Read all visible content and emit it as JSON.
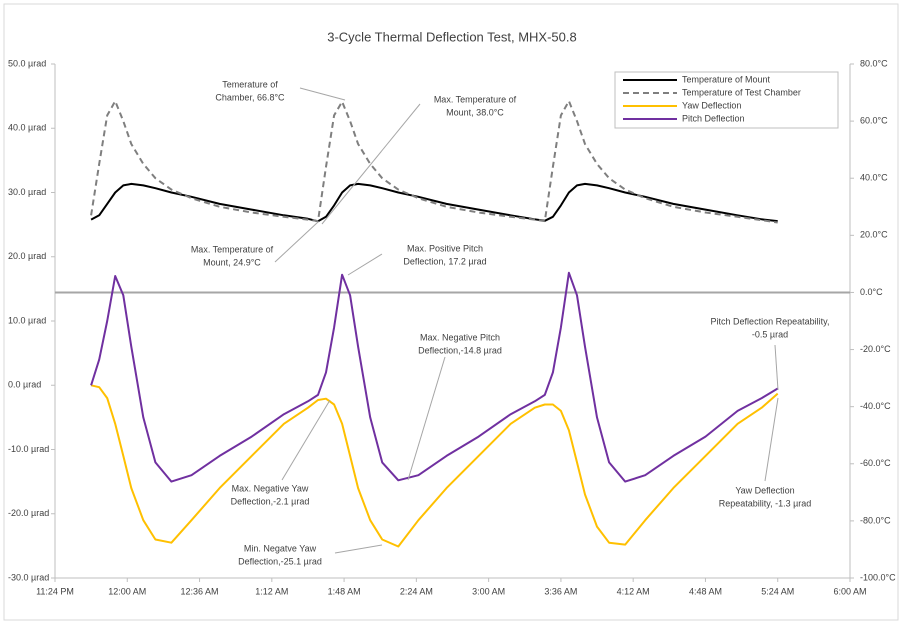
{
  "chart_data": {
    "type": "line",
    "title": "3-Cycle Thermal Deflection Test, MHX-50.8",
    "x": [
      "11:42 PM",
      "11:46 PM",
      "11:50 PM",
      "11:54 PM",
      "11:58 PM",
      "12:02 AM",
      "12:08 AM",
      "12:14 AM",
      "12:22 AM",
      "12:32 AM",
      "12:46 AM",
      "1:02 AM",
      "1:18 AM",
      "1:30 AM",
      "1:35 AM",
      "1:39 AM",
      "1:43 AM",
      "1:47 AM",
      "1:51 AM",
      "1:55 AM",
      "2:01 AM",
      "2:07 AM",
      "2:15 AM",
      "2:25 AM",
      "2:39 AM",
      "2:55 AM",
      "3:11 AM",
      "3:23 AM",
      "3:28 AM",
      "3:32 AM",
      "3:36 AM",
      "3:40 AM",
      "3:44 AM",
      "3:48 AM",
      "3:54 AM",
      "4:00 AM",
      "4:08 AM",
      "4:18 AM",
      "4:32 AM",
      "4:48 AM",
      "5:04 AM",
      "5:16 AM",
      "5:24 AM"
    ],
    "series": [
      {
        "name": "Temperature of Mount",
        "color": "#000000",
        "axis": "y2",
        "dash": false,
        "values": [
          25.5,
          27,
          31,
          35,
          37.5,
          38,
          37.5,
          36.5,
          35,
          33.5,
          31,
          29,
          27,
          25.8,
          24.9,
          26.5,
          30.5,
          35,
          37.5,
          38,
          37.5,
          36.5,
          35,
          33.5,
          31,
          29,
          27,
          25.6,
          25.1,
          26.5,
          30.5,
          35,
          37.5,
          38,
          37.5,
          36.5,
          35,
          33.5,
          31,
          29,
          27,
          25.6,
          25
        ]
      },
      {
        "name": "Temperature of Test Chamber",
        "color": "#7f7f7f",
        "axis": "y2",
        "dash": true,
        "values": [
          27,
          45,
          62,
          67,
          60,
          52,
          45,
          40,
          36,
          33,
          30,
          28,
          26.5,
          25.5,
          25,
          44,
          62,
          66.8,
          60,
          52,
          45,
          40,
          36,
          33,
          30,
          28,
          26.5,
          25.5,
          25,
          44,
          62,
          67,
          60,
          52,
          45,
          40,
          36,
          33,
          30,
          28,
          26.5,
          25.3,
          24.5
        ]
      },
      {
        "name": "Yaw Deflection",
        "color": "#ffc000",
        "axis": "y",
        "dash": false,
        "values": [
          0,
          -0.3,
          -2,
          -6,
          -11,
          -16,
          -21,
          -24,
          -24.5,
          -21,
          -16,
          -11,
          -6,
          -3.5,
          -2.3,
          -2.1,
          -3,
          -6,
          -11,
          -16,
          -21,
          -24,
          -25.1,
          -21,
          -16,
          -11,
          -6,
          -3.5,
          -3,
          -3,
          -4,
          -7,
          -12,
          -17,
          -22,
          -24.5,
          -24.8,
          -21,
          -16,
          -11,
          -6,
          -3.5,
          -1.3
        ]
      },
      {
        "name": "Pitch Deflection",
        "color": "#7030a0",
        "axis": "y",
        "dash": false,
        "values": [
          0,
          4,
          10,
          17,
          14,
          6,
          -5,
          -12,
          -15,
          -14,
          -11,
          -8,
          -4.5,
          -2.5,
          -1.5,
          2,
          9,
          17.2,
          14,
          6,
          -5,
          -12,
          -14.8,
          -14,
          -11,
          -8,
          -4.5,
          -2.5,
          -1.5,
          2,
          9,
          17.5,
          14,
          6,
          -5,
          -12,
          -15,
          -14,
          -11,
          -8,
          -4,
          -2,
          -0.5
        ]
      }
    ],
    "xlim": [
      "11:24 PM",
      "6:00 AM"
    ],
    "xticks": [
      "11:24 PM",
      "12:00 AM",
      "12:36 AM",
      "1:12 AM",
      "1:48 AM",
      "2:24 AM",
      "3:00 AM",
      "3:36 AM",
      "4:12 AM",
      "4:48 AM",
      "5:24 AM",
      "6:00 AM"
    ],
    "ylim": [
      -30,
      50
    ],
    "yticks": [
      {
        "value": -30,
        "label": "-30.0 µrad"
      },
      {
        "value": -20,
        "label": "-20.0 µrad"
      },
      {
        "value": -10,
        "label": "-10.0 µrad"
      },
      {
        "value": 0,
        "label": "0.0 µrad"
      },
      {
        "value": 10,
        "label": "10.0 µrad"
      },
      {
        "value": 20,
        "label": "20.0 µrad"
      },
      {
        "value": 30,
        "label": "30.0 µrad"
      },
      {
        "value": 40,
        "label": "40.0 µrad"
      },
      {
        "value": 50,
        "label": "50.0 µrad"
      }
    ],
    "y2lim": [
      -100,
      80
    ],
    "y2ticks": [
      {
        "value": -100,
        "label": "-100.0°C"
      },
      {
        "value": -80,
        "label": "-80.0°C"
      },
      {
        "value": -60,
        "label": "-60.0°C"
      },
      {
        "value": -40,
        "label": "-40.0°C"
      },
      {
        "value": -20,
        "label": "-20.0°C"
      },
      {
        "value": 0,
        "label": "0.0°C"
      },
      {
        "value": 20,
        "label": "20.0°C"
      },
      {
        "value": 40,
        "label": "40.0°C"
      },
      {
        "value": 60,
        "label": "60.0°C"
      },
      {
        "value": 80,
        "label": "80.0°C"
      }
    ],
    "grid": false,
    "legend": "top-right",
    "annotations": [
      {
        "lines": [
          "Temerature of",
          "Chamber, 66.8°C"
        ]
      },
      {
        "lines": [
          "Max. Temperature of",
          "Mount, 38.0°C"
        ]
      },
      {
        "lines": [
          "Max. Temperature of",
          "Mount, 24.9°C"
        ]
      },
      {
        "lines": [
          "Max. Positive Pitch",
          "Deflection, 17.2 µrad"
        ]
      },
      {
        "lines": [
          "Max. Negative Pitch",
          "Deflection,-14.8 µrad"
        ]
      },
      {
        "lines": [
          "Pitch Deflection Repeatability,",
          "-0.5 µrad"
        ]
      },
      {
        "lines": [
          "Max. Negative Yaw",
          "Deflection,-2.1 µrad"
        ]
      },
      {
        "lines": [
          "Min. Negatve Yaw",
          "Deflection,-25.1 µrad"
        ]
      },
      {
        "lines": [
          "Yaw Deflection",
          "Repeatability, -1.3 µrad"
        ]
      }
    ]
  }
}
